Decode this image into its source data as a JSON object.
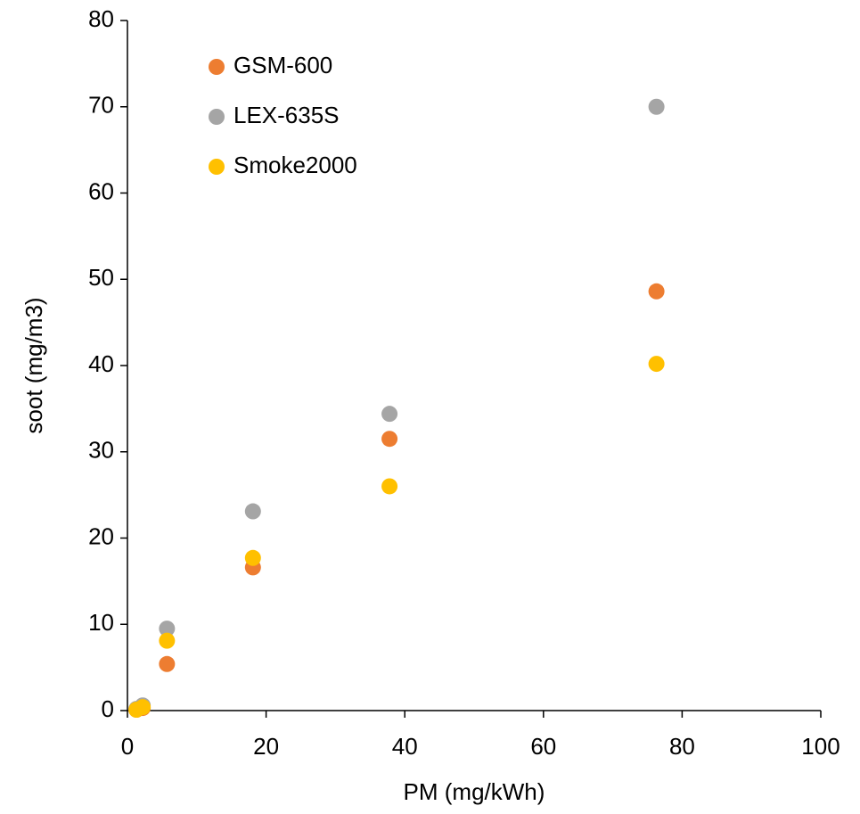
{
  "chart_data": {
    "type": "scatter",
    "x_label": "PM (mg/kWh)",
    "y_label": "soot (mg/m3)",
    "x": [
      1.3,
      2.2,
      5.7,
      18.1,
      37.8,
      76.3
    ],
    "series": [
      {
        "name": "GSM-600",
        "color": "#ED7D31",
        "values": [
          0.1,
          0.3,
          5.4,
          16.6,
          31.5,
          48.6
        ]
      },
      {
        "name": "LEX-635S",
        "color": "#A5A5A5",
        "values": [
          0.2,
          0.6,
          9.5,
          23.1,
          34.4,
          70.0
        ]
      },
      {
        "name": "Smoke2000",
        "color": "#FFC000",
        "values": [
          0.1,
          0.4,
          8.1,
          17.7,
          26.0,
          40.2
        ]
      }
    ],
    "xlim": [
      0,
      100
    ],
    "xticks": [
      0,
      20,
      40,
      60,
      80,
      100
    ],
    "ylim": [
      0,
      80
    ],
    "yticks": [
      0,
      10,
      20,
      30,
      40,
      50,
      60,
      70,
      80
    ],
    "legend": "top-left",
    "grid": false
  }
}
